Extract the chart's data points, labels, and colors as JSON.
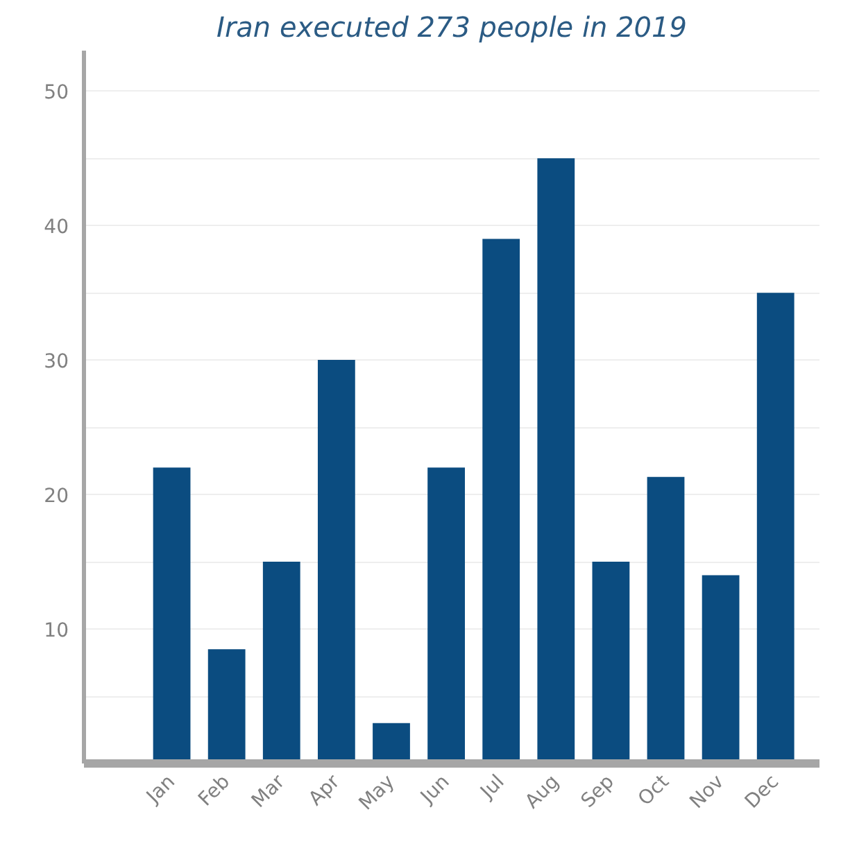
{
  "chart_data": {
    "type": "bar",
    "title": "Iran executed 273 people in 2019",
    "categories": [
      "Jan",
      "Feb",
      "Mar",
      "Apr",
      "May",
      "Jun",
      "Jul",
      "Aug",
      "Sep",
      "Oct",
      "Nov",
      "Dec"
    ],
    "values": [
      22,
      8.5,
      15,
      30,
      3,
      22,
      39,
      45,
      15,
      21.3,
      14,
      35
    ],
    "color": "#0b4c80",
    "ylim": [
      0,
      53
    ],
    "yticks": [
      {
        "value": 5,
        "label": null
      },
      10,
      {
        "value": 15,
        "label": null
      },
      20,
      {
        "value": 25,
        "label": null
      },
      30,
      {
        "value": 35,
        "label": null
      },
      40,
      {
        "value": 45,
        "label": null
      },
      50
    ],
    "grid": "y"
  }
}
